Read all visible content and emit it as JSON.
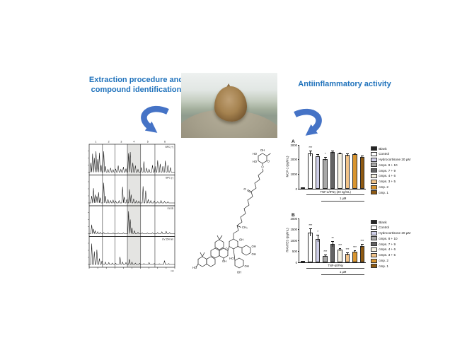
{
  "headings": {
    "left_line1": "Extraction procedure and",
    "left_line2": "compound identification",
    "right": "Antiinflammatory activity"
  },
  "colors": {
    "heading_blue": "#2173BC",
    "arrow_blue": "#4573C6"
  },
  "molecule": {
    "labels": [
      "OH",
      "HO",
      "HO",
      "O",
      "O",
      "O",
      "CH₃",
      "O",
      "OH",
      "OH",
      "OH",
      "HO",
      "OH",
      "OH",
      "HO",
      "OH"
    ]
  },
  "chart_data": [
    {
      "type": "line",
      "title": "chromatograms",
      "xlabel": "min",
      "region_labels": [
        "1",
        "2",
        "3",
        "4",
        "5",
        "6"
      ],
      "region_bounds": [
        0,
        0.155,
        0.302,
        0.447,
        0.6,
        0.768,
        1
      ],
      "highlight_region_index": 3,
      "panels": [
        {
          "label": "BPC (+)",
          "peaks": [
            [
              2,
              40
            ],
            [
              4,
              78
            ],
            [
              6,
              60
            ],
            [
              8,
              88
            ],
            [
              10,
              55
            ],
            [
              12,
              82
            ],
            [
              14,
              30
            ],
            [
              17,
              88
            ],
            [
              19,
              25
            ],
            [
              22,
              12
            ],
            [
              25,
              18
            ],
            [
              28,
              10
            ],
            [
              31,
              14
            ],
            [
              34,
              28
            ],
            [
              37,
              12
            ],
            [
              40,
              22
            ],
            [
              43,
              15
            ],
            [
              46,
              80
            ],
            [
              48,
              85
            ],
            [
              51,
              40
            ],
            [
              54,
              28
            ],
            [
              57,
              12
            ],
            [
              61,
              20
            ],
            [
              64,
              45
            ],
            [
              67,
              18
            ],
            [
              70,
              12
            ],
            [
              74,
              30
            ],
            [
              77,
              25
            ],
            [
              80,
              50
            ],
            [
              83,
              35
            ],
            [
              86,
              25
            ],
            [
              89,
              48
            ],
            [
              92,
              30
            ],
            [
              95,
              20
            ]
          ]
        },
        {
          "label": "BPC (-)",
          "peaks": [
            [
              3,
              30
            ],
            [
              5,
              62
            ],
            [
              7,
              35
            ],
            [
              9,
              28
            ],
            [
              11,
              45
            ],
            [
              13,
              22
            ],
            [
              17,
              85
            ],
            [
              19,
              30
            ],
            [
              22,
              15
            ],
            [
              25,
              10
            ],
            [
              28,
              12
            ],
            [
              31,
              8
            ],
            [
              35,
              10
            ],
            [
              39,
              68
            ],
            [
              41,
              25
            ],
            [
              44,
              15
            ],
            [
              47,
              58
            ],
            [
              49,
              35
            ],
            [
              52,
              18
            ],
            [
              55,
              10
            ],
            [
              58,
              8
            ],
            [
              63,
              70
            ],
            [
              66,
              52
            ],
            [
              69,
              15
            ],
            [
              72,
              10
            ],
            [
              76,
              8
            ],
            [
              80,
              6
            ],
            [
              84,
              10
            ],
            [
              88,
              7
            ],
            [
              92,
              5
            ]
          ]
        },
        {
          "label": "ELSD",
          "peaks": [
            [
              3,
              38
            ],
            [
              5,
              20
            ],
            [
              7,
              12
            ],
            [
              10,
              8
            ],
            [
              13,
              6
            ],
            [
              17,
              5
            ],
            [
              22,
              4
            ],
            [
              28,
              3
            ],
            [
              34,
              3
            ],
            [
              40,
              4
            ],
            [
              46,
              95
            ],
            [
              48,
              60
            ],
            [
              50,
              25
            ],
            [
              53,
              12
            ],
            [
              57,
              6
            ],
            [
              62,
              4
            ],
            [
              68,
              3
            ],
            [
              74,
              4
            ],
            [
              80,
              5
            ],
            [
              85,
              8
            ],
            [
              90,
              10
            ],
            [
              94,
              5
            ]
          ]
        },
        {
          "label": "UV 254 nm",
          "peaks": [
            [
              3,
              88
            ],
            [
              6,
              55
            ],
            [
              9,
              62
            ],
            [
              12,
              25
            ],
            [
              15,
              15
            ],
            [
              19,
              10
            ],
            [
              23,
              8
            ],
            [
              27,
              6
            ],
            [
              31,
              5
            ],
            [
              36,
              32
            ],
            [
              39,
              10
            ],
            [
              43,
              8
            ],
            [
              47,
              22
            ],
            [
              50,
              10
            ],
            [
              54,
              6
            ],
            [
              59,
              5
            ],
            [
              64,
              4
            ],
            [
              70,
              8
            ],
            [
              76,
              4
            ],
            [
              82,
              3
            ],
            [
              88,
              16
            ],
            [
              93,
              4
            ]
          ]
        }
      ]
    },
    {
      "type": "bar",
      "panel": "A",
      "ylabel": "MCP-1 (pg/mL)",
      "ylim": [
        0,
        3000
      ],
      "yticks": [
        0,
        1000,
        2000,
        3000
      ],
      "categories": [
        "Blank",
        "Control",
        "Hydrocortisone 20 µM",
        "cmps. 8 + 10",
        "cmps. 7 + 9",
        "cmps. 4 + 6",
        "cmps. 3 + 5",
        "cmp. 2",
        "cmp. 1"
      ],
      "colors": [
        "#262626",
        "#ffffff",
        "#cfcfe8",
        "#a8a8a8",
        "#636363",
        "#f5f1e3",
        "#f2c489",
        "#d9952f",
        "#8f5a12"
      ],
      "values": [
        30,
        2400,
        2250,
        2050,
        2500,
        2400,
        2300,
        2350,
        2200
      ],
      "errors": [
        10,
        170,
        60,
        110,
        90,
        50,
        90,
        40,
        60
      ],
      "significance": [
        "",
        "***",
        "",
        "*",
        "",
        "",
        "",
        "",
        ""
      ],
      "group_brackets": [
        {
          "label": "TNF-α/IFNγ (20 ng/mL)",
          "from": 1,
          "to": 8
        },
        {
          "label": "1 µM",
          "from": 3,
          "to": 8
        }
      ],
      "legend_position": "right"
    },
    {
      "type": "bar",
      "panel": "B",
      "ylabel": "RANTES (pg/mL)",
      "ylim": [
        0,
        2000
      ],
      "yticks": [
        0,
        500,
        1000,
        1500,
        2000
      ],
      "categories": [
        "Blank",
        "Control",
        "Hydrocortisone 20 µM",
        "cmps. 8 + 10",
        "cmps. 7 + 9",
        "cmps. 4 + 6",
        "cmps. 3 + 5",
        "cmp. 2",
        "cmp. 1"
      ],
      "colors": [
        "#262626",
        "#ffffff",
        "#cfcfe8",
        "#a8a8a8",
        "#636363",
        "#f5f1e3",
        "#f2c489",
        "#d9952f",
        "#8f5a12"
      ],
      "values": [
        15,
        1370,
        1080,
        300,
        830,
        570,
        380,
        480,
        740
      ],
      "errors": [
        5,
        160,
        140,
        40,
        120,
        60,
        45,
        40,
        70
      ],
      "significance": [
        "",
        "***",
        "*",
        "***",
        "**",
        "***",
        "***",
        "***",
        "***"
      ],
      "group_brackets": [
        {
          "label": "TNF-α/IFNγ",
          "from": 1,
          "to": 8
        },
        {
          "label": "1 µM",
          "from": 3,
          "to": 8
        }
      ],
      "legend_position": "right"
    }
  ]
}
